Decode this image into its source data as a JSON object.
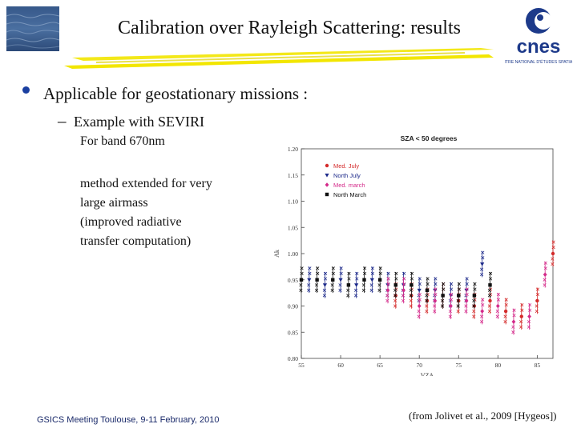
{
  "slide": {
    "title": "Calibration over Rayleigh Scattering: results",
    "bullet": "Applicable for geostationary missions :",
    "sub_bullet": "Example with SEVIRI",
    "band_text": "For band 670nm",
    "method_lines": [
      "method extended for very",
      "large airmass",
      "(improved radiative",
      "transfer computation)"
    ],
    "footer_left": "GSICS Meeting Toulouse, 9-11 February, 2010",
    "footer_right": "(from Jolivet et al., 2009 [Hygeos])"
  },
  "logo": {
    "text": "cnes",
    "subtext": "CENTRE NATIONAL D'ÉTUDES SPATIALES",
    "color": "#1d3a8a"
  },
  "colors": {
    "title_underline": "#f2e600",
    "bullet": "#1a3fa0",
    "footer": "#1a2a6a"
  },
  "chart_data": {
    "type": "scatter",
    "title": "SZA < 50 degrees",
    "xlabel": "VZA",
    "ylabel": "Ak",
    "xlim": [
      55,
      87
    ],
    "ylim": [
      0.8,
      1.2
    ],
    "x_ticks": [
      "55",
      "60",
      "65",
      "70",
      "75",
      "80",
      "85"
    ],
    "y_ticks": [
      "0.80",
      "0.85",
      "0.90",
      "0.95",
      "1.00",
      "1.05",
      "1.10",
      "1.15",
      "1.20"
    ],
    "legend_position": "top-left",
    "series": [
      {
        "name": "Med. July",
        "color": "#d42a2a",
        "marker": "circle",
        "x": [
          67,
          69,
          71,
          73,
          75,
          77,
          79,
          81,
          83,
          85,
          87
        ],
        "y": [
          0.92,
          0.92,
          0.91,
          0.92,
          0.91,
          0.9,
          0.91,
          0.89,
          0.88,
          0.91,
          1.0
        ]
      },
      {
        "name": "North July",
        "color": "#1d2a8a",
        "marker": "triangle",
        "x": [
          56,
          58,
          60,
          62,
          64,
          66,
          68,
          70,
          72,
          74,
          76,
          78
        ],
        "y": [
          0.95,
          0.94,
          0.95,
          0.94,
          0.95,
          0.94,
          0.94,
          0.93,
          0.93,
          0.92,
          0.93,
          0.98
        ]
      },
      {
        "name": "Med. march",
        "color": "#d42a8a",
        "marker": "diamond",
        "x": [
          66,
          68,
          70,
          72,
          74,
          76,
          78,
          80,
          82,
          84,
          86
        ],
        "y": [
          0.93,
          0.93,
          0.9,
          0.91,
          0.9,
          0.91,
          0.89,
          0.9,
          0.87,
          0.88,
          0.96
        ]
      },
      {
        "name": "North March",
        "color": "#111111",
        "marker": "square",
        "x": [
          55,
          57,
          59,
          61,
          63,
          65,
          67,
          69,
          71,
          73,
          75,
          77,
          79
        ],
        "y": [
          0.95,
          0.95,
          0.95,
          0.94,
          0.95,
          0.95,
          0.94,
          0.94,
          0.93,
          0.92,
          0.92,
          0.92,
          0.94
        ]
      }
    ]
  }
}
